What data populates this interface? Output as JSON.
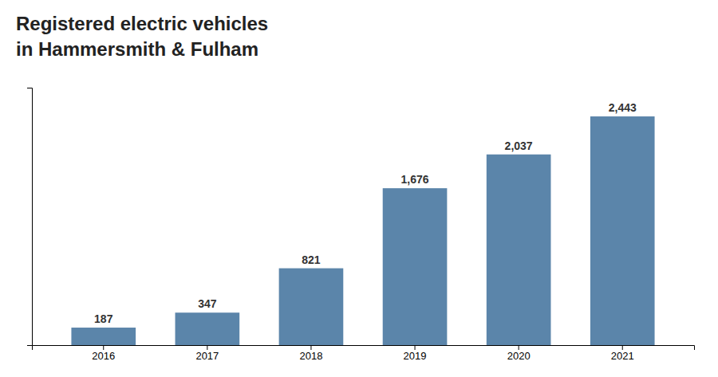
{
  "chart_data": {
    "type": "bar",
    "title": "Registered electric vehicles",
    "subtitle": "in Hammersmith & Fulham",
    "categories": [
      "2016",
      "2017",
      "2018",
      "2019",
      "2020",
      "2021"
    ],
    "values": [
      187,
      347,
      821,
      1676,
      2037,
      2443
    ],
    "value_labels": [
      "187",
      "347",
      "821",
      "1,676",
      "2,037",
      "2,443"
    ],
    "data_labels": true,
    "color": "#5b85aa",
    "ylim": [
      0,
      2750
    ],
    "tick_labels": "x",
    "grid": false
  }
}
